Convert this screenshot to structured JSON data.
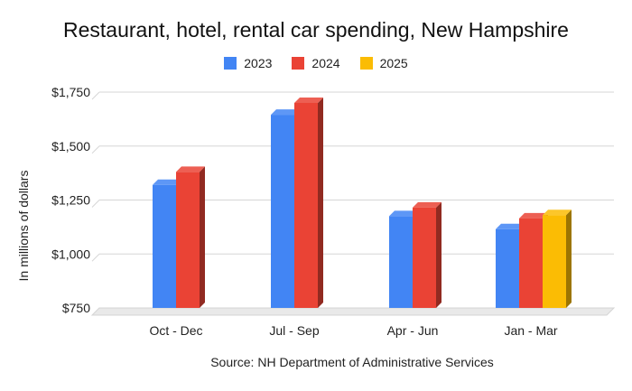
{
  "chart_data": {
    "type": "bar",
    "title": "Restaurant, hotel, rental car spending, New Hampshire",
    "xlabel": "",
    "ylabel": "In millions of dollars",
    "source": "Source: NH Department of Administrative Services",
    "categories": [
      "Oct - Dec",
      "Jul - Sep",
      "Apr - Jun",
      "Jan - Mar"
    ],
    "series": [
      {
        "name": "2023",
        "color": "#4285f4",
        "values": [
          1320,
          1645,
          1175,
          1115
        ]
      },
      {
        "name": "2024",
        "color": "#ea4335",
        "values": [
          1380,
          1700,
          1215,
          1165
        ]
      },
      {
        "name": "2025",
        "color": "#fbbc04",
        "values": [
          null,
          null,
          null,
          1180
        ]
      }
    ],
    "ylim": [
      750,
      1750
    ],
    "yticks": [
      750,
      1000,
      1250,
      1500,
      1750
    ],
    "ytick_labels": [
      "$750",
      "$1,000",
      "$1,250",
      "$1,500",
      "$1,750"
    ],
    "grid": true,
    "legend_position": "top-center",
    "style": "3d"
  }
}
